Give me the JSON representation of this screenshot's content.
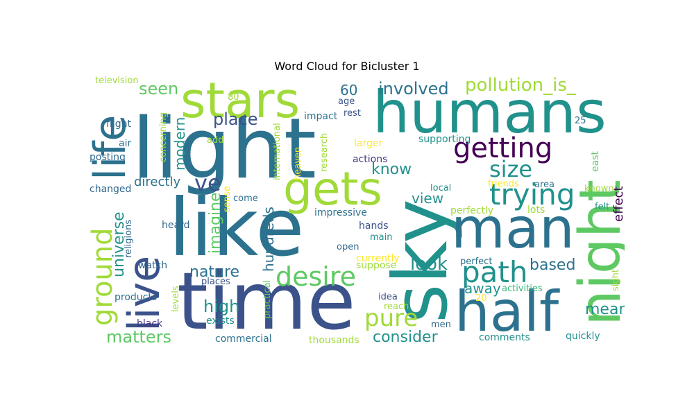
{
  "title": "Word Cloud for Bicluster 1",
  "colors": {
    "background": "#ffffff",
    "title": "#000000",
    "palette": [
      "#440154",
      "#3b528b",
      "#21918c",
      "#2c728e",
      "#5ec962",
      "#a0da39",
      "#fde725",
      "#35b779",
      "#31688e",
      "#46337e"
    ]
  },
  "words": {
    "sky": "sky",
    "light": "light",
    "humans": "humans",
    "like": "like",
    "time": "time",
    "stars": "stars",
    "man": "man",
    "half": "half",
    "night": "night",
    "life": "life",
    "live": "live",
    "gets": "gets",
    "getting": "getting",
    "ground": "ground",
    "path": "path",
    "trying": "trying",
    "pollution_is_": "pollution_is_",
    "size": "size",
    "desire": "desire",
    "pure": "pure",
    "ve": "ve",
    "involved": "involved",
    "seen": "seen",
    "place": "place",
    "modern": "modern",
    "imagine": "imagine",
    "universe": "universe",
    "nature": "nature",
    "high": "high",
    "matters": "matters",
    "look": "look",
    "based": "based",
    "consider": "consider",
    "know": "know",
    "view": "view",
    "hundreds": "hundreds",
    "mean": "mean",
    "away": "away",
    "directly": "directly",
    "effect": "effect",
    "sixty": "60",
    "television": "television",
    "flight": "flight",
    "air": "air",
    "posting": "posting",
    "changed": "changed",
    "religions": "religions",
    "heard": "heard",
    "watch": "watch",
    "products": "products",
    "black": "black",
    "levels": "levels",
    "exists": "exists",
    "commercial": "commercial",
    "practical": "practical",
    "thousands": "thousands",
    "men": "men",
    "comments": "comments",
    "quickly": "quickly",
    "eighty": "80",
    "concerning": "concerning",
    "add": "add",
    "international": "international",
    "heaven": "heaven",
    "research": "research",
    "age": "age",
    "rest": "rest",
    "impact": "impact",
    "supporting": "supporting",
    "larger": "larger",
    "actions": "actions",
    "twentyfive": "25",
    "east": "east",
    "friends": "friends",
    "area": "area",
    "known": "known",
    "felt": "felt",
    "local": "local",
    "lots": "lots",
    "perfectly": "perfectly",
    "impressive": "impressive",
    "hands": "hands",
    "main": "main",
    "open": "open",
    "currently": "currently",
    "suppose": "suppose",
    "perfect": "perfect",
    "activities": "activities",
    "sight": "sight",
    "idea": "idea",
    "reach": "reach",
    "twenty": "20",
    "sense": "sense",
    "come": "come",
    "places": "places"
  }
}
